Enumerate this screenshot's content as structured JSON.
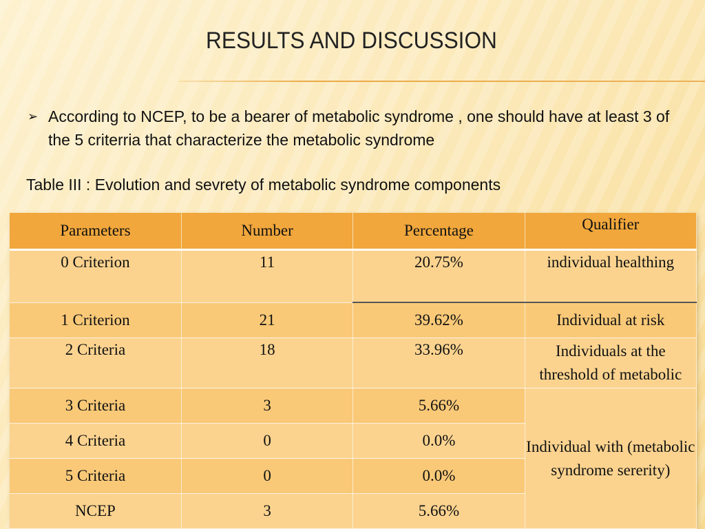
{
  "slide": {
    "title": "RESULTS AND DISCUSSION",
    "bullet_marker": "➢",
    "bullet_text": "According to NCEP, to be a bearer of metabolic syndrome , one should  have at least 3 of the 5 criterria that characterize the metabolic syndrome",
    "table_caption": "Table III : Evolution and sevrety of metabolic syndrome components"
  },
  "table": {
    "headers": [
      "Parameters",
      "Number",
      "Percentage",
      "Qualifier"
    ],
    "rows": [
      {
        "parameter": "0 Criterion",
        "number": "11",
        "percentage": "20.75%",
        "qualifier": "individual healthing"
      },
      {
        "parameter": "1 Criterion",
        "number": "21",
        "percentage": "39.62%",
        "qualifier": "Individual at risk"
      },
      {
        "parameter": "2 Criteria",
        "number": "18",
        "percentage": "33.96%",
        "qualifier": "Individuals at the threshold of metabolic"
      },
      {
        "parameter": "3 Criteria",
        "number": "3",
        "percentage": "5.66%"
      },
      {
        "parameter": "4 Criteria",
        "number": "0",
        "percentage": "0.0%"
      },
      {
        "parameter": "5 Criteria",
        "number": "0",
        "percentage": "0.0%"
      },
      {
        "parameter": "NCEP",
        "number": "3",
        "percentage": "5.66%"
      }
    ],
    "merged_qualifier": "Individual with (metabolic syndrome  sererity)"
  },
  "colors": {
    "header_bg": "#f1a73c",
    "row_light": "#fbd38f",
    "row_dark": "#f9c978",
    "title_rule": "#e9a948"
  }
}
